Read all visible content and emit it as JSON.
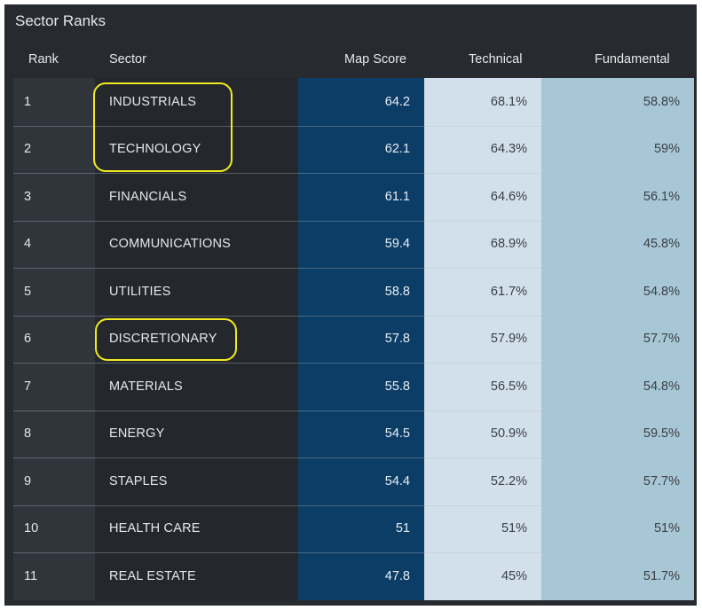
{
  "title": "Sector Ranks",
  "columns": {
    "rank": "Rank",
    "sector": "Sector",
    "map_score": "Map Score",
    "technical": "Technical",
    "fundamental": "Fundamental"
  },
  "rows": [
    {
      "rank": "1",
      "sector": "INDUSTRIALS",
      "map_score": "64.2",
      "technical": "68.1%",
      "fundamental": "58.8%"
    },
    {
      "rank": "2",
      "sector": "TECHNOLOGY",
      "map_score": "62.1",
      "technical": "64.3%",
      "fundamental": "59%"
    },
    {
      "rank": "3",
      "sector": "FINANCIALS",
      "map_score": "61.1",
      "technical": "64.6%",
      "fundamental": "56.1%"
    },
    {
      "rank": "4",
      "sector": "COMMUNICATIONS",
      "map_score": "59.4",
      "technical": "68.9%",
      "fundamental": "45.8%"
    },
    {
      "rank": "5",
      "sector": "UTILITIES",
      "map_score": "58.8",
      "technical": "61.7%",
      "fundamental": "54.8%"
    },
    {
      "rank": "6",
      "sector": "DISCRETIONARY",
      "map_score": "57.8",
      "technical": "57.9%",
      "fundamental": "57.7%"
    },
    {
      "rank": "7",
      "sector": "MATERIALS",
      "map_score": "55.8",
      "technical": "56.5%",
      "fundamental": "54.8%"
    },
    {
      "rank": "8",
      "sector": "ENERGY",
      "map_score": "54.5",
      "technical": "50.9%",
      "fundamental": "59.5%"
    },
    {
      "rank": "9",
      "sector": "STAPLES",
      "map_score": "54.4",
      "technical": "52.2%",
      "fundamental": "57.7%"
    },
    {
      "rank": "10",
      "sector": "HEALTH CARE",
      "map_score": "51",
      "technical": "51%",
      "fundamental": "51%"
    },
    {
      "rank": "11",
      "sector": "REAL ESTATE",
      "map_score": "47.8",
      "technical": "45%",
      "fundamental": "51.7%"
    }
  ],
  "colors": {
    "panel_bg": "#272b30",
    "map_score_col": "#0c3d66",
    "technical_col": "#d2e0ec",
    "fundamental_col": "#a7c6d6",
    "highlight": "#f2ea1f"
  }
}
